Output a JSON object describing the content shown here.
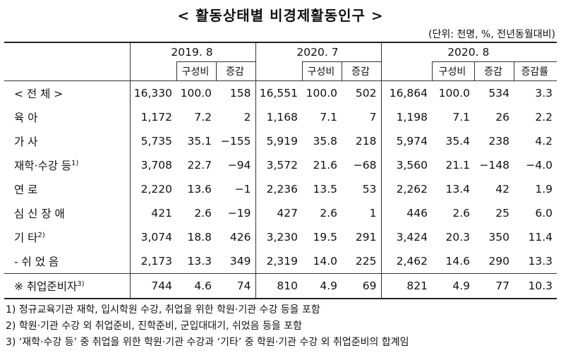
{
  "title": "< 활동상태별 비경제활동인구 >",
  "unit": "(단위: 천명, %, 전년동월대비)",
  "periods": [
    "2019. 8",
    "2020. 7",
    "2020. 8"
  ],
  "col_composition": "구성비",
  "col_change": "증감",
  "col_rate": "증감률",
  "rows": [
    {
      "label": "< 전 체 >",
      "v": [
        "16,330",
        "100.0",
        "158",
        "16,551",
        "100.0",
        "502",
        "16,864",
        "100.0",
        "534",
        "3.3"
      ]
    },
    {
      "label": "육 아",
      "v": [
        "1,172",
        "7.2",
        "2",
        "1,168",
        "7.1",
        "7",
        "1,198",
        "7.1",
        "26",
        "2.2"
      ]
    },
    {
      "label": "가 사",
      "v": [
        "5,735",
        "35.1",
        "−155",
        "5,919",
        "35.8",
        "218",
        "5,974",
        "35.4",
        "238",
        "4.2"
      ]
    },
    {
      "label": "재학·수강 등",
      "sup": "1)",
      "v": [
        "3,708",
        "22.7",
        "−94",
        "3,572",
        "21.6",
        "−68",
        "3,560",
        "21.1",
        "−148",
        "−4.0"
      ]
    },
    {
      "label": "연 로",
      "v": [
        "2,220",
        "13.6",
        "−1",
        "2,236",
        "13.5",
        "53",
        "2,262",
        "13.4",
        "42",
        "1.9"
      ]
    },
    {
      "label": "심 신 장 애",
      "v": [
        "421",
        "2.6",
        "−19",
        "427",
        "2.6",
        "1",
        "446",
        "2.6",
        "25",
        "6.0"
      ]
    },
    {
      "label": "기 타",
      "sup": "2)",
      "v": [
        "3,074",
        "18.8",
        "426",
        "3,230",
        "19.5",
        "291",
        "3,424",
        "20.3",
        "350",
        "11.4"
      ]
    },
    {
      "label": "- 쉬 었 음",
      "v": [
        "2,173",
        "13.3",
        "349",
        "2,319",
        "14.0",
        "225",
        "2,462",
        "14.6",
        "290",
        "13.3"
      ]
    },
    {
      "label": "※ 취업준비자",
      "sup": "3)",
      "v": [
        "744",
        "4.6",
        "74",
        "810",
        "4.9",
        "69",
        "821",
        "4.9",
        "77",
        "10.3"
      ]
    }
  ],
  "notes": [
    "1) 정규교육기관 재학, 입시학원 수강, 취업을 위한 학원·기관 수강 등을 포함",
    "2) 학원·기관 수강 외 취업준비, 진학준비, 군입대대기, 쉬었음 등을 포함",
    "3) ‘재학·수강 등’ 중 취업을 위한 학원·기관 수강과 ‘기타’ 중 학원·기관 수강 외 취업준비의 합계임"
  ]
}
